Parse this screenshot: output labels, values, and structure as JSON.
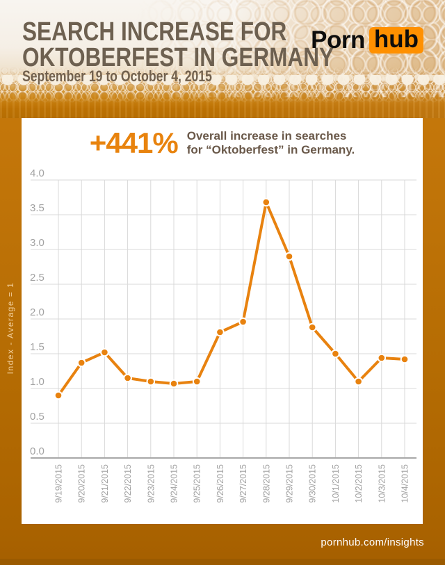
{
  "header": {
    "title_line1": "SEARCH INCREASE FOR",
    "title_line2": "OKTOBERFEST IN GERMANY",
    "subtitle": "September 19 to October 4, 2015",
    "logo_part1": "Porn",
    "logo_part2": "hub"
  },
  "callout": {
    "percent": "+441%",
    "line1": "Overall increase in searches",
    "line2": "for “Oktoberfest” in Germany."
  },
  "chart_data": {
    "type": "line",
    "title": "Search increase for Oktoberfest in Germany",
    "x": [
      "9/19/2015",
      "9/20/2015",
      "9/21/2015",
      "9/22/2015",
      "9/23/2015",
      "9/24/2015",
      "9/25/2015",
      "9/26/2015",
      "9/27/2015",
      "9/28/2015",
      "9/29/2015",
      "9/30/2015",
      "10/1/2015",
      "10/2/2015",
      "10/3/2015",
      "10/4/2015"
    ],
    "values": [
      0.9,
      1.37,
      1.52,
      1.15,
      1.1,
      1.07,
      1.1,
      1.81,
      1.96,
      3.68,
      2.9,
      1.88,
      1.5,
      1.1,
      1.44,
      1.42
    ],
    "xlabel": "",
    "ylabel": "Index - Average = 1",
    "ylim": [
      0.0,
      4.0
    ],
    "yticks": [
      "4.0",
      "3.5",
      "3.0",
      "2.5",
      "2.0",
      "1.5",
      "1.0",
      "0.5",
      "0.0"
    ],
    "grid": true,
    "legend": "none",
    "marker": "circle"
  },
  "footer": {
    "url": "pornhub.com/insights"
  },
  "colors": {
    "accent_orange": "#e8820f",
    "brand_orange": "#ff9000",
    "title_brown": "#6d6050",
    "desc_brown": "#6a594a",
    "tick_gray": "#a2a2a2",
    "grid_gray": "#d9d9d9",
    "axis_gray": "#a8a8a8"
  }
}
